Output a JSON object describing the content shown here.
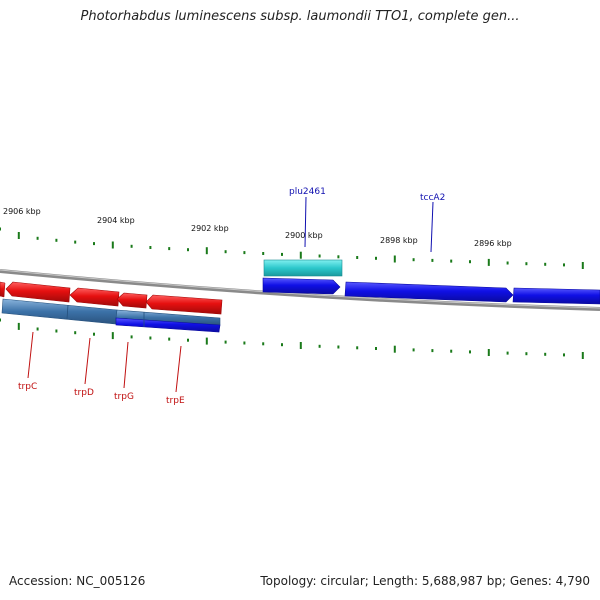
{
  "title": "Photorhabdus luminescens subsp. laumondii TTO1, complete gen...",
  "footer": {
    "accession": "Accession: NC_005126",
    "summary": "Topology: circular; Length: 5,688,987 bp; Genes: 4,790"
  },
  "scale_labels": [
    "2906 kbp",
    "2904 kbp",
    "2902 kbp",
    "2900 kbp",
    "2898 kbp",
    "2896 kbp"
  ],
  "genes": {
    "plu2461": "plu2461",
    "tccA2": "tccA2",
    "trpC": "trpC",
    "trpD": "trpD",
    "trpG": "trpG",
    "trpE": "trpE"
  },
  "colors": {
    "backbone": "#8a8a8a",
    "tick": "#1a7a1a",
    "forward_gene": "#1010e6",
    "forward_cds": "#2cc8cc",
    "reverse_gene": "#e61010",
    "reverse_cds": "#3c72a8",
    "forward_label": "#1010b0",
    "reverse_label": "#c01010"
  }
}
